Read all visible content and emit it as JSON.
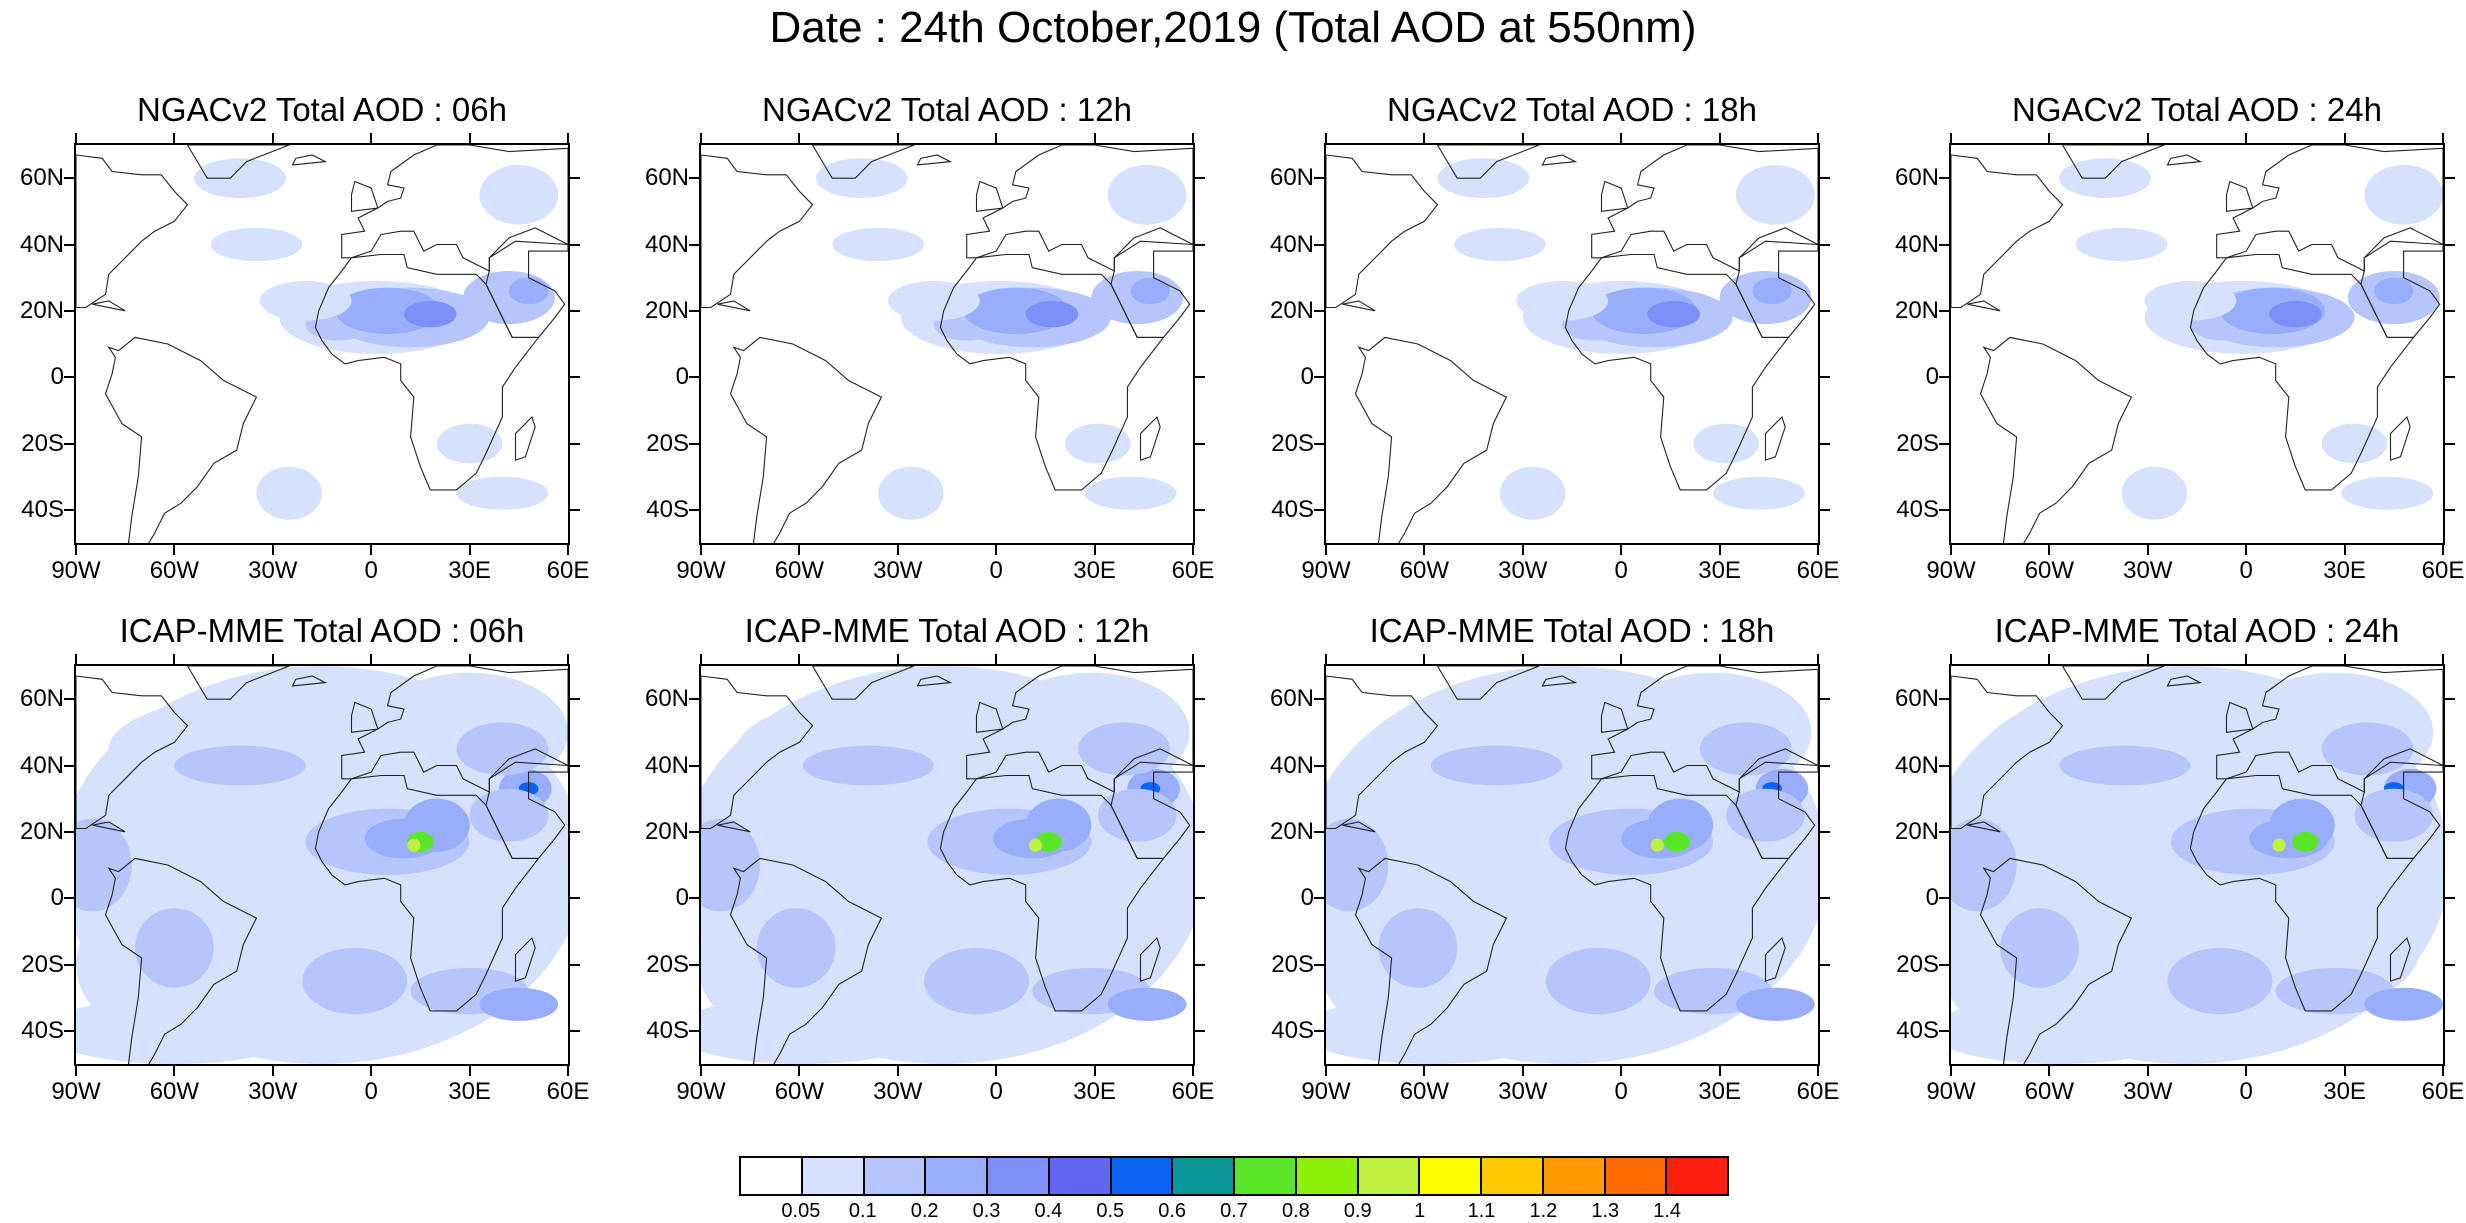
{
  "title": "Date : 24th October,2019 (Total AOD at 550nm)",
  "panels": [
    {
      "title": "NGACv2 Total AOD : 06h",
      "model": "NGACv2",
      "hour": "06h"
    },
    {
      "title": "NGACv2 Total AOD : 12h",
      "model": "NGACv2",
      "hour": "12h"
    },
    {
      "title": "NGACv2 Total AOD : 18h",
      "model": "NGACv2",
      "hour": "18h"
    },
    {
      "title": "NGACv2 Total AOD : 24h",
      "model": "NGACv2",
      "hour": "24h"
    },
    {
      "title": "ICAP-MME Total AOD : 06h",
      "model": "ICAP-MME",
      "hour": "06h"
    },
    {
      "title": "ICAP-MME Total AOD : 12h",
      "model": "ICAP-MME",
      "hour": "12h"
    },
    {
      "title": "ICAP-MME Total AOD : 18h",
      "model": "ICAP-MME",
      "hour": "18h"
    },
    {
      "title": "ICAP-MME Total AOD : 24h",
      "model": "ICAP-MME",
      "hour": "24h"
    }
  ],
  "lat_labels": [
    "60N",
    "40N",
    "20N",
    "0",
    "20S",
    "40S"
  ],
  "lon_labels": [
    "90W",
    "60W",
    "30W",
    "0",
    "30E",
    "60E"
  ],
  "colorbar": {
    "labels": [
      "0.05",
      "0.1",
      "0.2",
      "0.3",
      "0.4",
      "0.5",
      "0.6",
      "0.7",
      "0.8",
      "0.9",
      "1",
      "1.1",
      "1.2",
      "1.3",
      "1.4"
    ],
    "colors": [
      "#ffffff",
      "#d6e1fe",
      "#b6c6fc",
      "#98adfb",
      "#7d8ff8",
      "#6266ee",
      "#0a64f0",
      "#0a9696",
      "#5ae628",
      "#8cf00a",
      "#c0f040",
      "#ffff00",
      "#ffc800",
      "#ff9a00",
      "#ff6a00",
      "#ff2010"
    ]
  }
}
